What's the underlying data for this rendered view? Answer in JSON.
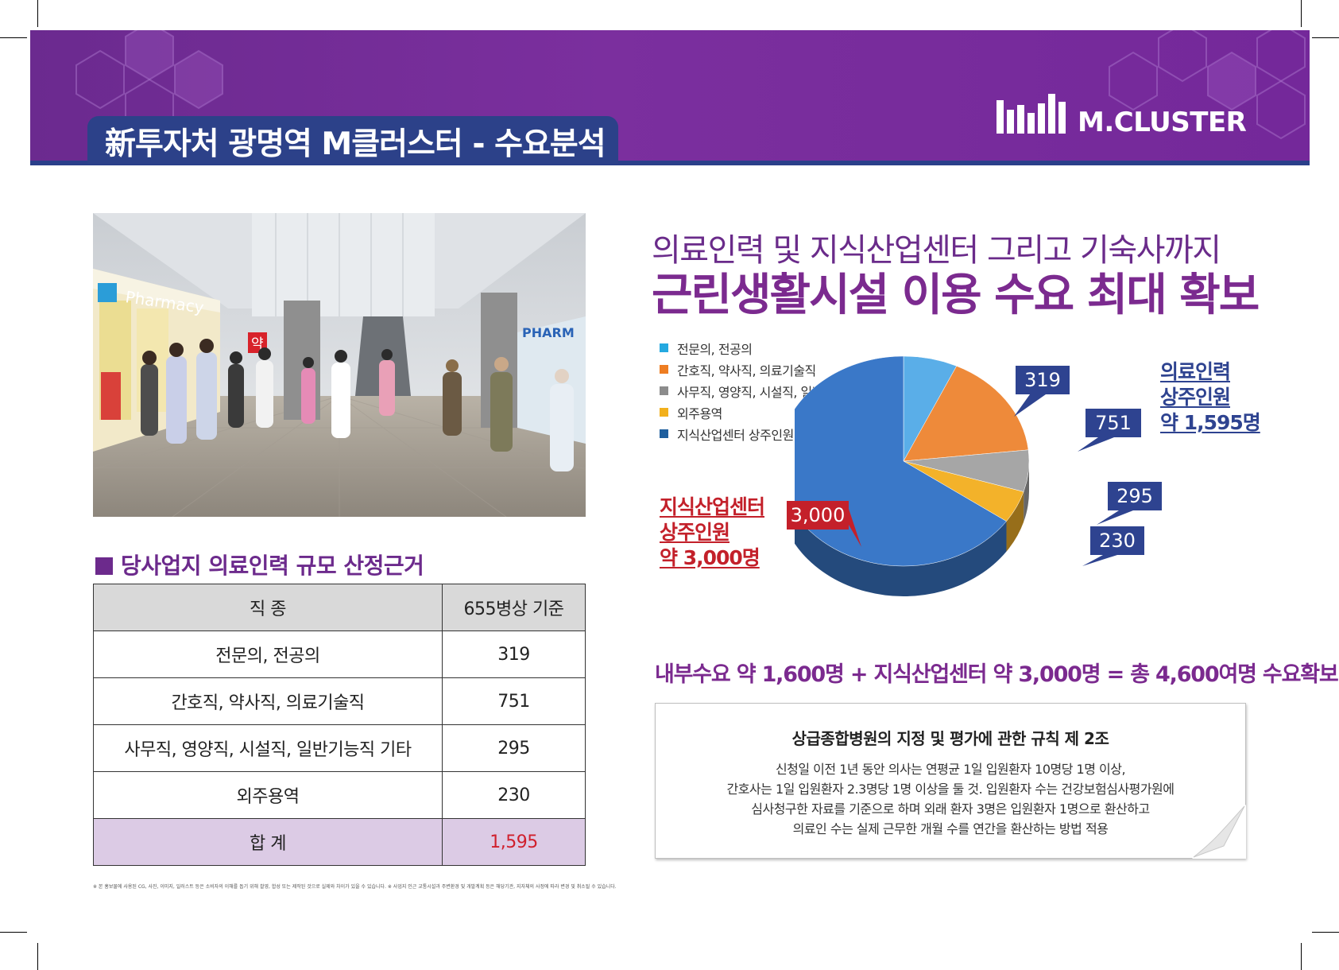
{
  "header": {
    "title": "新투자처 광명역 M클러스터 - 수요분석",
    "logo_text": "M.CLUSTER"
  },
  "photo": {
    "sign_pharmacy": "Pharmacy",
    "sign_pharm": "PHARM",
    "sign_yak": "약"
  },
  "table": {
    "heading": "당사업지 의료인력 규모 산정근거",
    "columns": [
      "직 종",
      "655병상 기준"
    ],
    "rows": [
      {
        "label": "전문의, 전공의",
        "value": "319"
      },
      {
        "label": "간호직, 약사직, 의료기술직",
        "value": "751"
      },
      {
        "label": "사무직, 영양직, 시설직, 일반기능직 기타",
        "value": "295"
      },
      {
        "label": "외주용역",
        "value": "230"
      }
    ],
    "total": {
      "label": "합 계",
      "value": "1,595"
    }
  },
  "footnote": "※ 본 홍보물에 사용된 CG, 사진, 이미지, 일러스트 등은 소비자의 이해를 돕기 위해 촬영, 합성 또는 제작된 것으로 실제와 차이가 있을 수 있습니다. ※ 사업지 인근 교통시설과 주변환경 및 개발계획 등은 해당기관, 지자체의 사정에 따라 변경 및 취소될 수 있습니다.",
  "headline": {
    "line1": "의료인력 및 지식산업센터 그리고 기숙사까지",
    "line2": "근린생활시설 이용 수요 최대 확보"
  },
  "chart_data": {
    "type": "pie",
    "categories": [
      "전문의, 전공의",
      "간호직, 약사직, 의료기술직",
      "사무직, 영양직, 시설직, 일반기능직 기타",
      "외주용역",
      "지식산업센터 상주인원"
    ],
    "values": [
      319,
      751,
      295,
      230,
      3000
    ],
    "value_labels": [
      "319",
      "751",
      "295",
      "230",
      "3,000"
    ],
    "colors": [
      "#5aaee8",
      "#ee8a3a",
      "#a6a6a6",
      "#f3b22a",
      "#3a78c8"
    ],
    "legend_colors": [
      "#25a9e0",
      "#ee7d22",
      "#8c8c8c",
      "#f2b01c",
      "#1f5f9e"
    ],
    "legend_position": "top-left"
  },
  "annotations": {
    "medical": [
      "의료인력",
      "상주인원",
      "약 1,595명"
    ],
    "knowledge": [
      "지식산업센터",
      "상주인원",
      "약 3,000명"
    ]
  },
  "summary": "내부수요 약 1,600명 + 지식산업센터 약 3,000명 = 총 4,600여명 수요확보",
  "rule": {
    "title": "상급종합병원의 지정 및 평가에 관한 규칙 제 2조",
    "lines": [
      "신청일 이전 1년 동안 의사는 연평균 1일 입원환자 10명당 1명 이상,",
      "간호사는 1일 입원환자 2.3명당 1명 이상을 둘 것. 입원환자 수는 건강보험심사평가원에",
      "심사청구한 자료를 기준으로 하며 외래 환자 3명은 입원환자 1명으로 환산하고",
      "의료인 수는 실제 근무한 개월 수를 연간을 환산하는 방법 적용"
    ]
  }
}
